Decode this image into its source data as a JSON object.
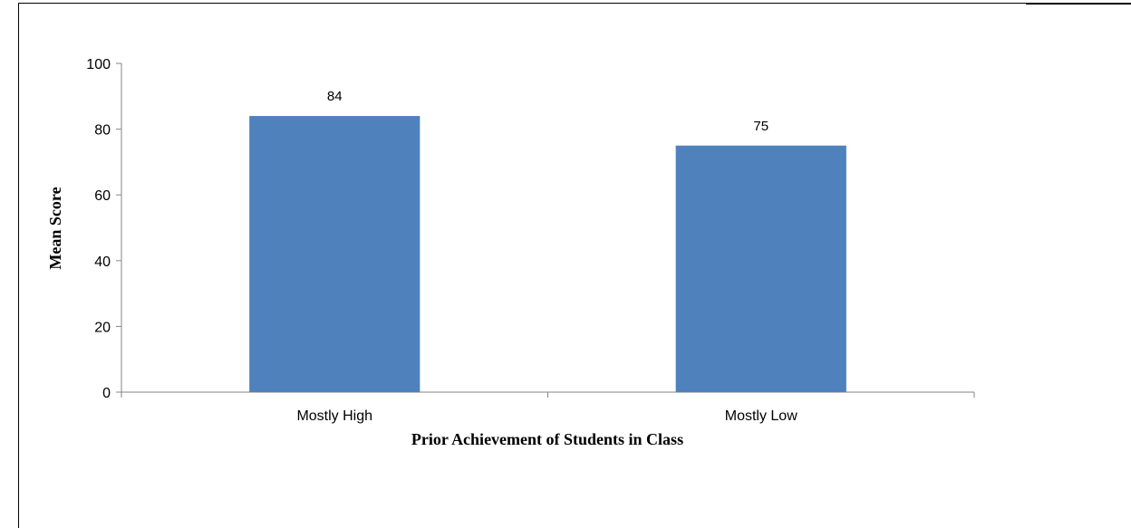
{
  "chart_data": {
    "type": "bar",
    "categories": [
      "Mostly High",
      "Mostly Low"
    ],
    "values": [
      84,
      75
    ],
    "data_labels": [
      "84",
      "75"
    ],
    "title": "",
    "xlabel": "Prior Achievement of Students in Class",
    "ylabel": "Mean Score",
    "ylim": [
      0,
      100
    ],
    "yticks": [
      0,
      20,
      40,
      60,
      80,
      100
    ],
    "grid": false,
    "legend": "none",
    "bar_color": "#4F81BD"
  }
}
